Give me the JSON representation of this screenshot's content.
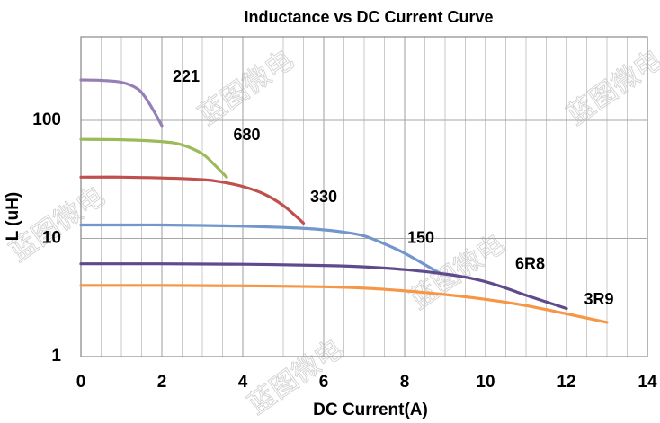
{
  "chart_data": {
    "type": "line",
    "title": "Inductance vs  DC Current Curve",
    "xlabel": "DC Current(A)",
    "ylabel": "L (uH)",
    "xlim": [
      0,
      14
    ],
    "ylim": [
      1,
      500
    ],
    "y_scale": "log",
    "x_ticks": [
      0,
      2,
      4,
      6,
      8,
      10,
      12,
      14
    ],
    "x_tick_labels": [
      "0",
      "2",
      "4",
      "6",
      "8",
      "10",
      "12",
      "14"
    ],
    "y_ticks": [
      1,
      10,
      100
    ],
    "y_tick_labels": [
      "1",
      "10",
      "100"
    ],
    "grid": true,
    "legend": "none",
    "series": [
      {
        "name": "221",
        "color": "#9580b6",
        "x": [
          0,
          0.5,
          1.0,
          1.4,
          1.6,
          1.8,
          2.0
        ],
        "y": [
          220,
          218,
          210,
          185,
          155,
          120,
          90
        ]
      },
      {
        "name": "680",
        "color": "#9bbb59",
        "x": [
          0,
          1.0,
          2.0,
          2.5,
          3.0,
          3.3,
          3.6
        ],
        "y": [
          69,
          68.5,
          66,
          62,
          52,
          42,
          33
        ]
      },
      {
        "name": "330",
        "color": "#c0504d",
        "x": [
          0,
          1.0,
          2.0,
          3.0,
          3.5,
          4.0,
          4.5,
          5.0,
          5.5
        ],
        "y": [
          33,
          33,
          32.5,
          31.5,
          30,
          27.5,
          24,
          19,
          13.5
        ]
      },
      {
        "name": "150",
        "color": "#7397cc",
        "x": [
          0,
          1.0,
          2.0,
          3.0,
          4.0,
          5.0,
          5.8,
          6.5,
          7.0,
          7.5,
          8.0,
          8.5,
          8.9
        ],
        "y": [
          13,
          13,
          13,
          12.9,
          12.7,
          12.4,
          12,
          11.3,
          10.5,
          9,
          7.5,
          6,
          5
        ]
      },
      {
        "name": "6R8",
        "color": "#5f4a8b",
        "x": [
          0,
          2,
          4,
          6,
          7,
          8,
          9,
          9.5,
          10,
          10.5,
          11,
          11.5,
          12
        ],
        "y": [
          6.1,
          6.1,
          6.05,
          5.9,
          5.75,
          5.45,
          5.0,
          4.7,
          4.3,
          3.8,
          3.3,
          2.9,
          2.55
        ]
      },
      {
        "name": "3R9",
        "color": "#f79646",
        "x": [
          0,
          2,
          4,
          6,
          7,
          8,
          9,
          10,
          11,
          12,
          13
        ],
        "y": [
          4.0,
          4.0,
          3.97,
          3.9,
          3.8,
          3.6,
          3.35,
          3.05,
          2.7,
          2.3,
          1.95
        ]
      }
    ],
    "annotations": [
      {
        "text": "221",
        "x": 2.6,
        "y": 230
      },
      {
        "text": "680",
        "x": 4.1,
        "y": 74
      },
      {
        "text": "330",
        "x": 6.0,
        "y": 22
      },
      {
        "text": "150",
        "x": 8.4,
        "y": 10
      },
      {
        "text": "6R8",
        "x": 11.1,
        "y": 6.0
      },
      {
        "text": "3R9",
        "x": 12.8,
        "y": 3.0
      }
    ],
    "watermark_text": "蓝图微电"
  }
}
